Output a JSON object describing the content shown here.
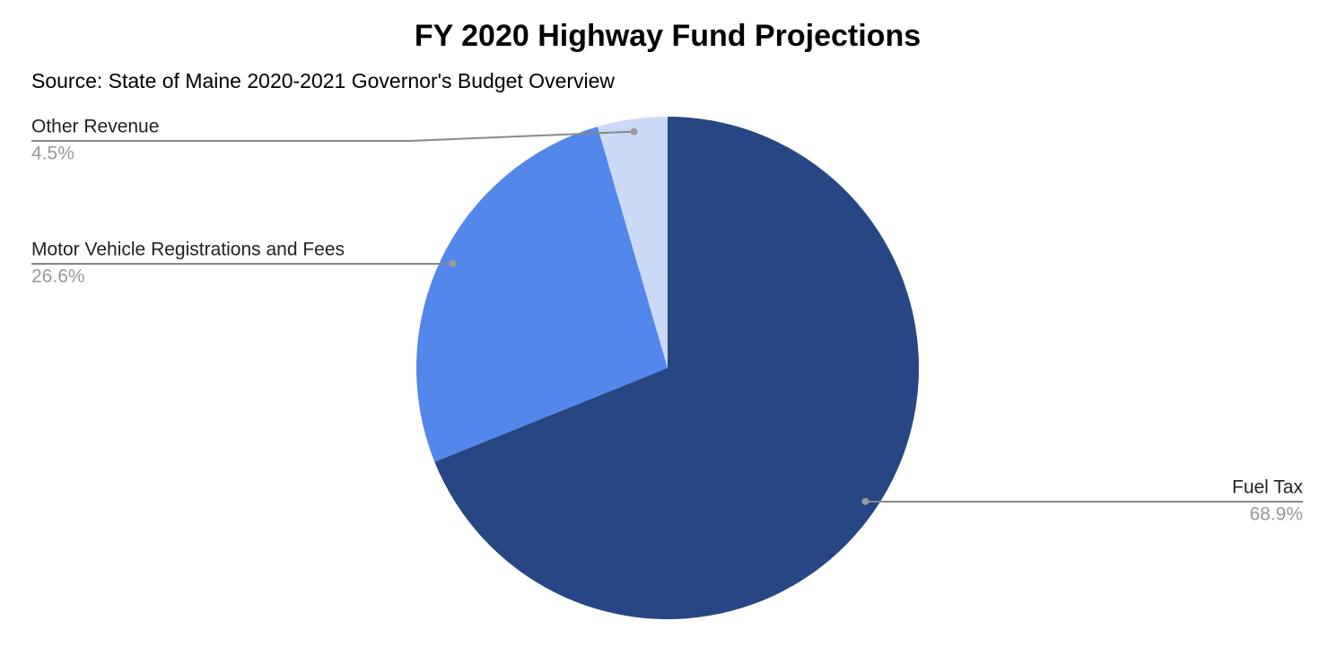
{
  "chart_data": {
    "type": "pie",
    "title": "FY 2020 Highway Fund Projections",
    "subtitle": "Source: State of Maine 2020-2021 Governor's Budget Overview",
    "categories": [
      "Fuel Tax",
      "Motor Vehicle Registrations and Fees",
      "Other Revenue"
    ],
    "values": [
      68.9,
      26.6,
      4.5
    ],
    "value_labels": [
      "68.9%",
      "26.6%",
      "4.5%"
    ],
    "colors": [
      "#274684",
      "#5387eb",
      "#ccd9f6"
    ]
  }
}
